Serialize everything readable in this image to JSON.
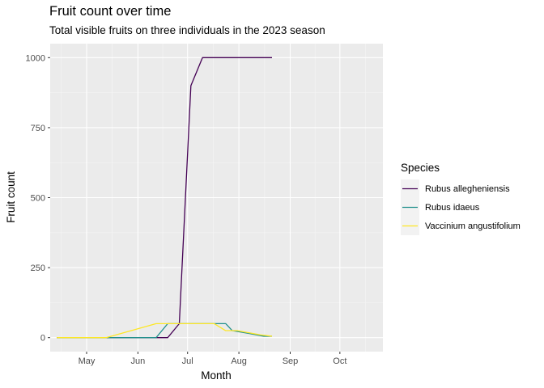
{
  "chart_data": {
    "type": "line",
    "title": "Fruit count over time",
    "subtitle": "Total visible fruits on three individuals in the 2023 season",
    "xlabel": "Month",
    "ylabel": "Fruit count",
    "legend_title": "Species",
    "legend_position": "right",
    "grid": true,
    "xlim": [
      "2023-04-09",
      "2023-10-27"
    ],
    "ylim": [
      -50,
      1050
    ],
    "x_ticks": [
      {
        "label": "May",
        "date": "2023-05-01"
      },
      {
        "label": "Jun",
        "date": "2023-06-01"
      },
      {
        "label": "Jul",
        "date": "2023-07-01"
      },
      {
        "label": "Aug",
        "date": "2023-08-01"
      },
      {
        "label": "Sep",
        "date": "2023-09-01"
      },
      {
        "label": "Oct",
        "date": "2023-10-01"
      }
    ],
    "y_ticks": [
      0,
      250,
      500,
      750,
      1000
    ],
    "series": [
      {
        "name": "Rubus allegheniensis",
        "color": "#440154",
        "points": [
          [
            "2023-04-13",
            0
          ],
          [
            "2023-05-13",
            0
          ],
          [
            "2023-06-19",
            0
          ],
          [
            "2023-06-26",
            50
          ],
          [
            "2023-07-03",
            900
          ],
          [
            "2023-07-10",
            1000
          ],
          [
            "2023-07-17",
            1000
          ],
          [
            "2023-07-24",
            1000
          ],
          [
            "2023-07-31",
            1000
          ],
          [
            "2023-08-07",
            1000
          ],
          [
            "2023-08-14",
            1000
          ],
          [
            "2023-08-21",
            1000
          ]
        ]
      },
      {
        "name": "Rubus idaeus",
        "color": "#21908C",
        "points": [
          [
            "2023-04-13",
            0
          ],
          [
            "2023-05-08",
            0
          ],
          [
            "2023-05-22",
            0
          ],
          [
            "2023-06-12",
            0
          ],
          [
            "2023-06-19",
            50
          ],
          [
            "2023-07-03",
            50
          ],
          [
            "2023-07-24",
            50
          ],
          [
            "2023-07-28",
            25
          ],
          [
            "2023-08-07",
            15
          ],
          [
            "2023-08-16",
            5
          ],
          [
            "2023-08-21",
            5
          ]
        ]
      },
      {
        "name": "Vaccinium angustifolium",
        "color": "#FDE725",
        "points": [
          [
            "2023-04-13",
            0
          ],
          [
            "2023-05-13",
            0
          ],
          [
            "2023-06-12",
            50
          ],
          [
            "2023-06-26",
            50
          ],
          [
            "2023-07-17",
            50
          ],
          [
            "2023-07-24",
            25
          ],
          [
            "2023-07-31",
            25
          ],
          [
            "2023-08-14",
            10
          ],
          [
            "2023-08-21",
            5
          ]
        ]
      }
    ]
  }
}
